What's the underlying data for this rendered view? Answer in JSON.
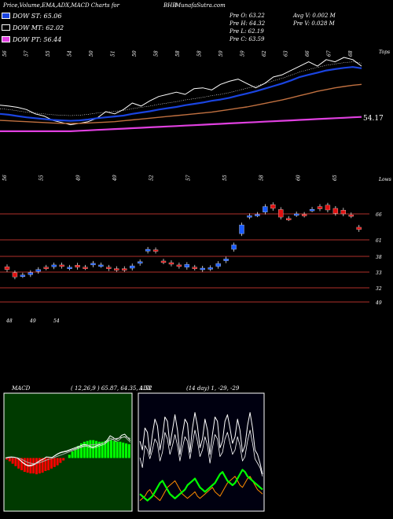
{
  "header": {
    "title": "Price,Volume,EMA,ADX,MACD Charts for",
    "symbol": "BHB",
    "site": "MunafaSutra.com"
  },
  "legend": [
    {
      "label": "DOW ST: 65.06",
      "color": "#1a44e0"
    },
    {
      "label": "DOW MT: 62.02",
      "color": "#000000"
    },
    {
      "label": "DOW PT: 56.44",
      "color": "#e040e0"
    }
  ],
  "quote": {
    "prev_open": "Pre  O: 63.22",
    "prev_high": "Pre  H: 64.32",
    "prev_low": "Pre  L: 62.19",
    "prev_close": "Pre  C: 63.59",
    "avg_volume": "Avg V: 0.002  M",
    "prev_volume": "Pre  V: 0.028  M"
  },
  "ema_panel": {
    "top_tag": "Tops",
    "last_value_label": "54.17",
    "top_labels": [
      "56",
      "57",
      "55",
      "54",
      "50",
      "51",
      "50",
      "58",
      "58",
      "58",
      "59",
      "59",
      "62",
      "63",
      "66",
      "67",
      "68"
    ],
    "bottom_labels": [
      "56",
      "55",
      "49",
      "49",
      "52",
      "57",
      "55",
      "58",
      "60",
      "65"
    ]
  },
  "price_panel": {
    "corner_tag": "Lows",
    "levels": [
      "66",
      "61",
      "38",
      "33",
      "32",
      "49"
    ],
    "bottom_labels": [
      "48",
      "49",
      "54"
    ]
  },
  "macd_panel": {
    "label": "MACD",
    "params": "( 12,26,9 ) 65.87,  64.35,  1.52"
  },
  "adx_panel": {
    "label": "ADX",
    "params": "(14  day) 1,  -29,  -29"
  },
  "colors": {
    "up": "#1a5cff",
    "down": "#e01010",
    "level": "#b0302a",
    "ema_blue": "#1a44e0",
    "ema_pink": "#e040e0",
    "ema_brown": "#c07040",
    "macd_green": "#00ff00",
    "macd_red": "#ff0000",
    "adx_orange": "#ff8c00"
  },
  "chart_data": [
    {
      "type": "line",
      "name": "EMA panel",
      "series": [
        {
          "values": [
            62,
            61.8,
            61.5,
            61,
            60,
            59.5,
            58.5,
            58,
            57.5,
            57.8,
            58.2,
            59,
            60.5,
            60,
            61,
            62.5,
            61.8,
            63,
            64,
            64.5,
            65,
            64.5,
            65.8,
            66,
            65.5,
            66.8,
            67.5,
            68,
            67,
            66,
            67,
            68.5,
            69,
            70,
            71,
            72,
            71,
            72.5,
            72,
            73,
            72.5,
            71
          ]
        },
        {
          "values": [
            60,
            59.8,
            59.5,
            59.2,
            59,
            58.8,
            58.6,
            58.5,
            58.4,
            58.5,
            58.7,
            59,
            59.2,
            59.4,
            59.6,
            60,
            60.3,
            60.6,
            61,
            61.3,
            61.6,
            62,
            62.3,
            62.6,
            63,
            63.3,
            63.7,
            64.2,
            64.7,
            65.2,
            65.8,
            66.4,
            67,
            67.7,
            68.5,
            69,
            69.5,
            70,
            70.3,
            70.6,
            70.8,
            70.5
          ]
        },
        {
          "values": [
            58.5,
            58.4,
            58.3,
            58.2,
            58.1,
            58,
            57.9,
            57.8,
            57.8,
            57.8,
            57.9,
            58,
            58.1,
            58.2,
            58.4,
            58.6,
            58.8,
            59,
            59.2,
            59.4,
            59.6,
            59.8,
            60,
            60.2,
            60.4,
            60.7,
            61,
            61.3,
            61.6,
            62,
            62.4,
            62.8,
            63.2,
            63.7,
            64.2,
            64.7,
            65.2,
            65.6,
            66,
            66.3,
            66.6,
            66.8
          ]
        },
        {
          "values": [
            56,
            56,
            56,
            56,
            56,
            56,
            56,
            56,
            56,
            56.1,
            56.2,
            56.3,
            56.4,
            56.5,
            56.6,
            56.7,
            56.8,
            56.9,
            57,
            57.1,
            57.2,
            57.3,
            57.4,
            57.5,
            57.6,
            57.7,
            57.8,
            57.9,
            58,
            58.1,
            58.2,
            58.3,
            58.4,
            58.5,
            58.6,
            58.7,
            58.8,
            58.9,
            59,
            59.1,
            59.2,
            59.3
          ]
        }
      ]
    },
    {
      "type": "bar",
      "name": "Price candles",
      "candles": [
        {
          "o": 38.8,
          "c": 37.6
        },
        {
          "o": 36.2,
          "c": 34.4
        },
        {
          "o": 35.0,
          "c": 35.2
        },
        {
          "o": 35.4,
          "c": 36.3
        },
        {
          "o": 36.8,
          "c": 37.6
        },
        {
          "o": 38.6,
          "c": 38.3
        },
        {
          "o": 38.8,
          "c": 39.6
        },
        {
          "o": 39.6,
          "c": 39.0
        },
        {
          "o": 38.3,
          "c": 38.6
        },
        {
          "o": 39.5,
          "c": 38.6
        },
        {
          "o": 38.6,
          "c": 38.4
        },
        {
          "o": 39.6,
          "c": 40.3
        },
        {
          "o": 39.4,
          "c": 39.6
        },
        {
          "o": 38.6,
          "c": 38.0
        },
        {
          "o": 38.0,
          "c": 37.6
        },
        {
          "o": 38.0,
          "c": 37.6
        },
        {
          "o": 38.2,
          "c": 39.2
        },
        {
          "o": 40.3,
          "c": 41.0
        },
        {
          "o": 45.6,
          "c": 46.4
        },
        {
          "o": 46.2,
          "c": 45.6
        },
        {
          "o": 41.3,
          "c": 41.0
        },
        {
          "o": 40.6,
          "c": 40.0
        },
        {
          "o": 39.6,
          "c": 39.0
        },
        {
          "o": 38.6,
          "c": 39.8
        },
        {
          "o": 38.6,
          "c": 38.2
        },
        {
          "o": 37.6,
          "c": 38.2
        },
        {
          "o": 38.0,
          "c": 38.4
        },
        {
          "o": 39.0,
          "c": 40.2
        },
        {
          "o": 41.4,
          "c": 42.2
        },
        {
          "o": 46.4,
          "c": 48.3
        },
        {
          "o": 53.2,
          "c": 57.0
        },
        {
          "o": 60.5,
          "c": 61.0
        },
        {
          "o": 61.4,
          "c": 61.6
        },
        {
          "o": 62.6,
          "c": 65.0
        },
        {
          "o": 65.8,
          "c": 64.2
        },
        {
          "o": 63.7,
          "c": 60.4
        },
        {
          "o": 59.8,
          "c": 59.7
        },
        {
          "o": 61.5,
          "c": 61.8
        },
        {
          "o": 61.6,
          "c": 61.3
        },
        {
          "o": 63.6,
          "c": 63.8
        },
        {
          "o": 65.0,
          "c": 64.0
        },
        {
          "o": 65.6,
          "c": 63.5
        },
        {
          "o": 64.2,
          "c": 62.0
        },
        {
          "o": 63.4,
          "c": 61.8
        },
        {
          "o": 61.4,
          "c": 61.0
        },
        {
          "o": 56.0,
          "c": 55.0
        }
      ]
    },
    {
      "type": "bar",
      "name": "MACD",
      "hist": [
        -0.2,
        -0.4,
        -0.7,
        -1,
        -1.3,
        -1.5,
        -1.7,
        -1.8,
        -1.9,
        -1.9,
        -2,
        -1.9,
        -1.8,
        -1.6,
        -1.5,
        -1.3,
        -1.1,
        -0.9,
        -0.6,
        -0.3,
        0,
        0.4,
        0.8,
        1.1,
        1.5,
        1.8,
        2,
        2.1,
        2.2,
        2.2,
        2.1,
        2,
        2,
        2.1,
        2.2,
        2.2,
        2.1,
        2,
        2,
        1.9,
        1.8,
        1.7
      ],
      "series": [
        {
          "values": [
            0,
            0.3,
            0.4,
            0.3,
            0,
            -0.8,
            -1.8,
            -2.6,
            -3,
            -2.8,
            -2.4,
            -1.6,
            -0.9,
            -0.4,
            0.4,
            0.3,
            0.2,
            0.9,
            1.6,
            2.1,
            2.4,
            2.6,
            3,
            3.4,
            3.8,
            4.2,
            4.6,
            5,
            4.8,
            4.4,
            4,
            4.4,
            4.8,
            5.2,
            5.6,
            6.6,
            8.2,
            7.6,
            6.8,
            7.3,
            8.4,
            8.8,
            7.6,
            6.4
          ]
        },
        {
          "values": [
            0,
            0.1,
            0.2,
            0.2,
            0.1,
            -0.2,
            -0.7,
            -1.3,
            -1.8,
            -2,
            -2.1,
            -1.9,
            -1.6,
            -1.2,
            -0.8,
            -0.4,
            -0.1,
            0.3,
            0.7,
            1.1,
            1.5,
            1.9,
            2.3,
            2.7,
            3.1,
            3.5,
            3.9,
            4.3,
            4.6,
            4.8,
            4.9,
            5,
            5.1,
            5.3,
            5.6,
            6,
            6.6,
            7,
            7.2,
            7.4,
            7.6,
            7.8,
            7.6,
            7.2
          ]
        }
      ]
    },
    {
      "type": "line",
      "name": "ADX",
      "series": [
        {
          "values": [
            60,
            52,
            72,
            68,
            48,
            66,
            80,
            74,
            52,
            64,
            82,
            78,
            56,
            70,
            84,
            70,
            48,
            66,
            80,
            76,
            50,
            72,
            86,
            74,
            54,
            62,
            80,
            70,
            48,
            66,
            82,
            78,
            54,
            60,
            78,
            84,
            72,
            58,
            64,
            80,
            70,
            50,
            56,
            74,
            86,
            72,
            52,
            48,
            40,
            30
          ]
        },
        {
          "values": [
            45,
            36,
            56,
            52,
            44,
            52,
            62,
            58,
            42,
            50,
            68,
            62,
            48,
            56,
            66,
            56,
            42,
            54,
            64,
            60,
            44,
            58,
            70,
            60,
            46,
            52,
            64,
            56,
            40,
            54,
            66,
            62,
            46,
            50,
            62,
            68,
            58,
            48,
            52,
            64,
            56,
            42,
            46,
            60,
            70,
            58,
            44,
            40,
            36,
            28
          ]
        },
        {
          "values": [
            6,
            8,
            10,
            14,
            16,
            12,
            10,
            8,
            6,
            10,
            14,
            18,
            20,
            22,
            24,
            20,
            16,
            12,
            10,
            8,
            10,
            12,
            14,
            10,
            8,
            10,
            12,
            14,
            16,
            18,
            14,
            12,
            10,
            14,
            18,
            22,
            24,
            26,
            28,
            24,
            20,
            18,
            22,
            26,
            28,
            24,
            20,
            16,
            14,
            12
          ]
        },
        {
          "values": [
            12,
            10,
            8,
            6,
            8,
            10,
            14,
            18,
            22,
            24,
            20,
            16,
            12,
            10,
            8,
            10,
            12,
            14,
            16,
            20,
            22,
            24,
            26,
            22,
            18,
            16,
            14,
            16,
            18,
            20,
            22,
            26,
            30,
            32,
            28,
            24,
            22,
            20,
            22,
            26,
            30,
            34,
            32,
            28,
            26,
            24,
            22,
            20,
            18,
            16
          ]
        }
      ]
    }
  ]
}
